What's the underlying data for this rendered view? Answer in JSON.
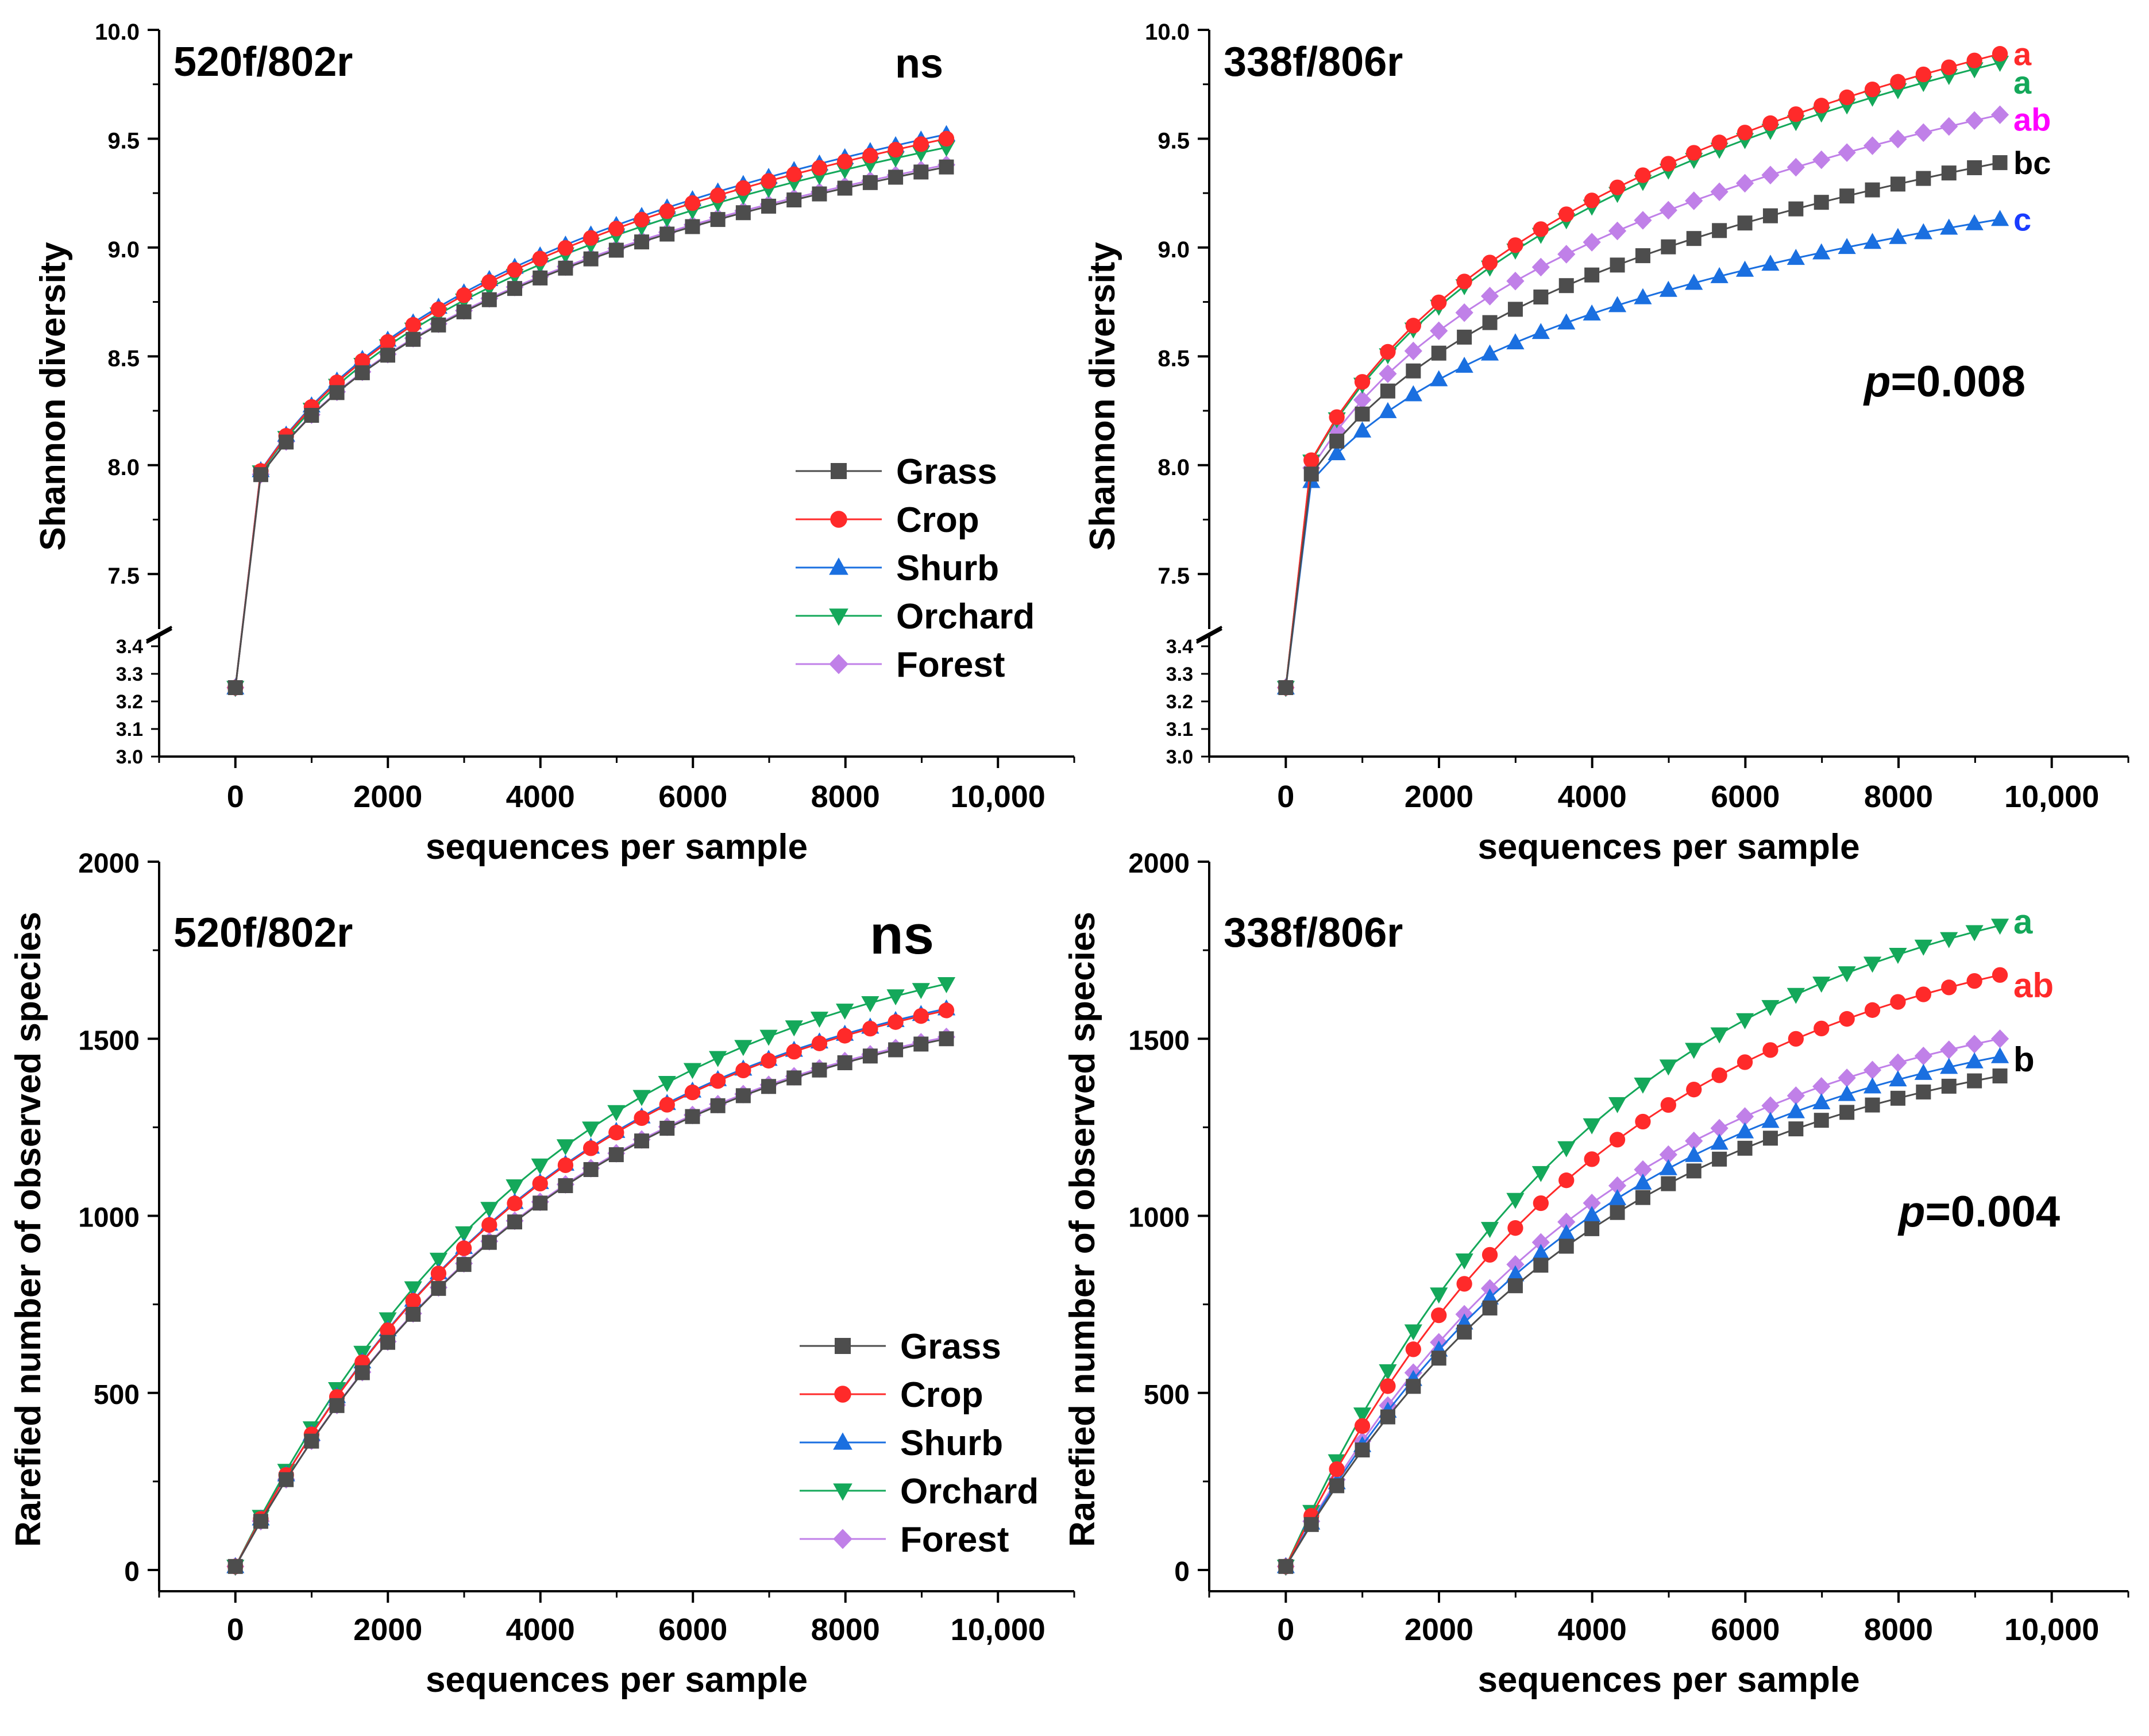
{
  "series_styles": [
    {
      "name": "Grass",
      "color": "#4d4d4d",
      "marker": "square"
    },
    {
      "name": "Crop",
      "color": "#ff2a2a",
      "marker": "circle"
    },
    {
      "name": "Shurb",
      "color": "#1a6fe0",
      "marker": "triangle-up"
    },
    {
      "name": "Orchard",
      "color": "#14a85a",
      "marker": "triangle-down"
    },
    {
      "name": "Forest",
      "color": "#c080e8",
      "marker": "diamond"
    }
  ],
  "chart_data": [
    {
      "type": "line",
      "title": "520f/802r",
      "annotation": "ns",
      "xlabel": "sequences per sample",
      "ylabel": "Shannon diversity",
      "xlim": [
        -1000,
        11000
      ],
      "xticks": [
        0,
        2000,
        4000,
        6000,
        8000,
        10000
      ],
      "xtick_labels": [
        "0",
        "2000",
        "4000",
        "6000",
        "8000",
        "10,000"
      ],
      "ylim": [
        3.0,
        10.0
      ],
      "yaxis_break": {
        "lower": [
          3.0,
          3.4
        ],
        "upper": [
          7.3,
          10.0
        ]
      },
      "yticks_lower": [
        "3.0",
        "3.1",
        "3.2",
        "3.3",
        "3.4"
      ],
      "yticks_upper": [
        "7.5",
        "8.0",
        "8.5",
        "9.0",
        "9.5",
        "10.0"
      ],
      "legend": {
        "entries": [
          "Grass",
          "Crop",
          "Shurb",
          "Orchard",
          "Forest"
        ],
        "position": "bottom-right"
      },
      "curve": {
        "model": "shannon",
        "x_step": 333,
        "x_max": 9324,
        "start": 3.25,
        "k": 1.2
      },
      "series": [
        {
          "name": "Grass",
          "final": 9.37
        },
        {
          "name": "Crop",
          "final": 9.5
        },
        {
          "name": "Shurb",
          "final": 9.52
        },
        {
          "name": "Orchard",
          "final": 9.46
        },
        {
          "name": "Forest",
          "final": 9.38
        }
      ],
      "sig_letters": []
    },
    {
      "type": "line",
      "title": "338f/806r",
      "annotation_p_italic": "p",
      "annotation_p_value": "=0.008",
      "xlabel": "sequences per sample",
      "ylabel": "Shannon diversity",
      "xlim": [
        -1000,
        11000
      ],
      "xticks": [
        0,
        2000,
        4000,
        6000,
        8000,
        10000
      ],
      "xtick_labels": [
        "0",
        "2000",
        "4000",
        "6000",
        "8000",
        "10,000"
      ],
      "ylim": [
        3.0,
        10.0
      ],
      "yaxis_break": {
        "lower": [
          3.0,
          3.4
        ],
        "upper": [
          7.3,
          10.0
        ]
      },
      "yticks_lower": [
        "3.0",
        "3.1",
        "3.2",
        "3.3",
        "3.4"
      ],
      "yticks_upper": [
        "7.5",
        "8.0",
        "8.5",
        "9.0",
        "9.5",
        "10.0"
      ],
      "curve": {
        "model": "shannon",
        "x_step": 333,
        "x_max": 9324,
        "start": 3.25,
        "k": 1.2
      },
      "series": [
        {
          "name": "Grass",
          "final": 9.39
        },
        {
          "name": "Crop",
          "final": 9.89
        },
        {
          "name": "Shurb",
          "final": 9.13
        },
        {
          "name": "Orchard",
          "final": 9.85
        },
        {
          "name": "Forest",
          "final": 9.61
        }
      ],
      "sig_letters": [
        {
          "text": "a",
          "color": "#ff2a2a",
          "y": 9.89
        },
        {
          "text": "a",
          "color": "#14a85a",
          "y": 9.76
        },
        {
          "text": "ab",
          "color": "#ff00ff",
          "y": 9.59
        },
        {
          "text": "bc",
          "color": "#000000",
          "y": 9.39
        },
        {
          "text": "c",
          "color": "#1a3cff",
          "y": 9.13
        }
      ]
    },
    {
      "type": "line",
      "title": "520f/802r",
      "annotation": "ns",
      "xlabel": "sequences per sample",
      "ylabel": "Rarefied number of observed species",
      "xlim": [
        -1000,
        11000
      ],
      "xticks": [
        0,
        2000,
        4000,
        6000,
        8000,
        10000
      ],
      "xtick_labels": [
        "0",
        "2000",
        "4000",
        "6000",
        "8000",
        "10,000"
      ],
      "ylim": [
        -60,
        2000
      ],
      "yticks": [
        0,
        500,
        1000,
        1500,
        2000
      ],
      "legend": {
        "entries": [
          "Grass",
          "Crop",
          "Shurb",
          "Orchard",
          "Forest"
        ],
        "position": "bottom-right"
      },
      "curve": {
        "model": "richness",
        "x_step": 333,
        "x_max": 9324,
        "start": 10
      },
      "series": [
        {
          "name": "Grass",
          "final": 1500
        },
        {
          "name": "Crop",
          "final": 1580
        },
        {
          "name": "Shurb",
          "final": 1585
        },
        {
          "name": "Orchard",
          "final": 1655
        },
        {
          "name": "Forest",
          "final": 1505
        }
      ],
      "sig_letters": []
    },
    {
      "type": "line",
      "title": "338f/806r",
      "annotation_p_italic": "p",
      "annotation_p_value": "=0.004",
      "xlabel": "sequences per sample",
      "ylabel": "Rarefied number of observed species",
      "xlim": [
        -1000,
        11000
      ],
      "xticks": [
        0,
        2000,
        4000,
        6000,
        8000,
        10000
      ],
      "xtick_labels": [
        "0",
        "2000",
        "4000",
        "6000",
        "8000",
        "10,000"
      ],
      "ylim": [
        -60,
        2000
      ],
      "yticks": [
        0,
        500,
        1000,
        1500,
        2000
      ],
      "curve": {
        "model": "richness",
        "x_step": 333,
        "x_max": 9324,
        "start": 10
      },
      "series": [
        {
          "name": "Grass",
          "final": 1395
        },
        {
          "name": "Crop",
          "final": 1680
        },
        {
          "name": "Shurb",
          "final": 1450
        },
        {
          "name": "Orchard",
          "final": 1820
        },
        {
          "name": "Forest",
          "final": 1500
        }
      ],
      "sig_letters": [
        {
          "text": "a",
          "color": "#14a85a",
          "y": 1830
        },
        {
          "text": "ab",
          "color": "#ff2a2a",
          "y": 1650
        },
        {
          "text": "b",
          "color": "#000000",
          "y": 1440
        }
      ]
    }
  ]
}
